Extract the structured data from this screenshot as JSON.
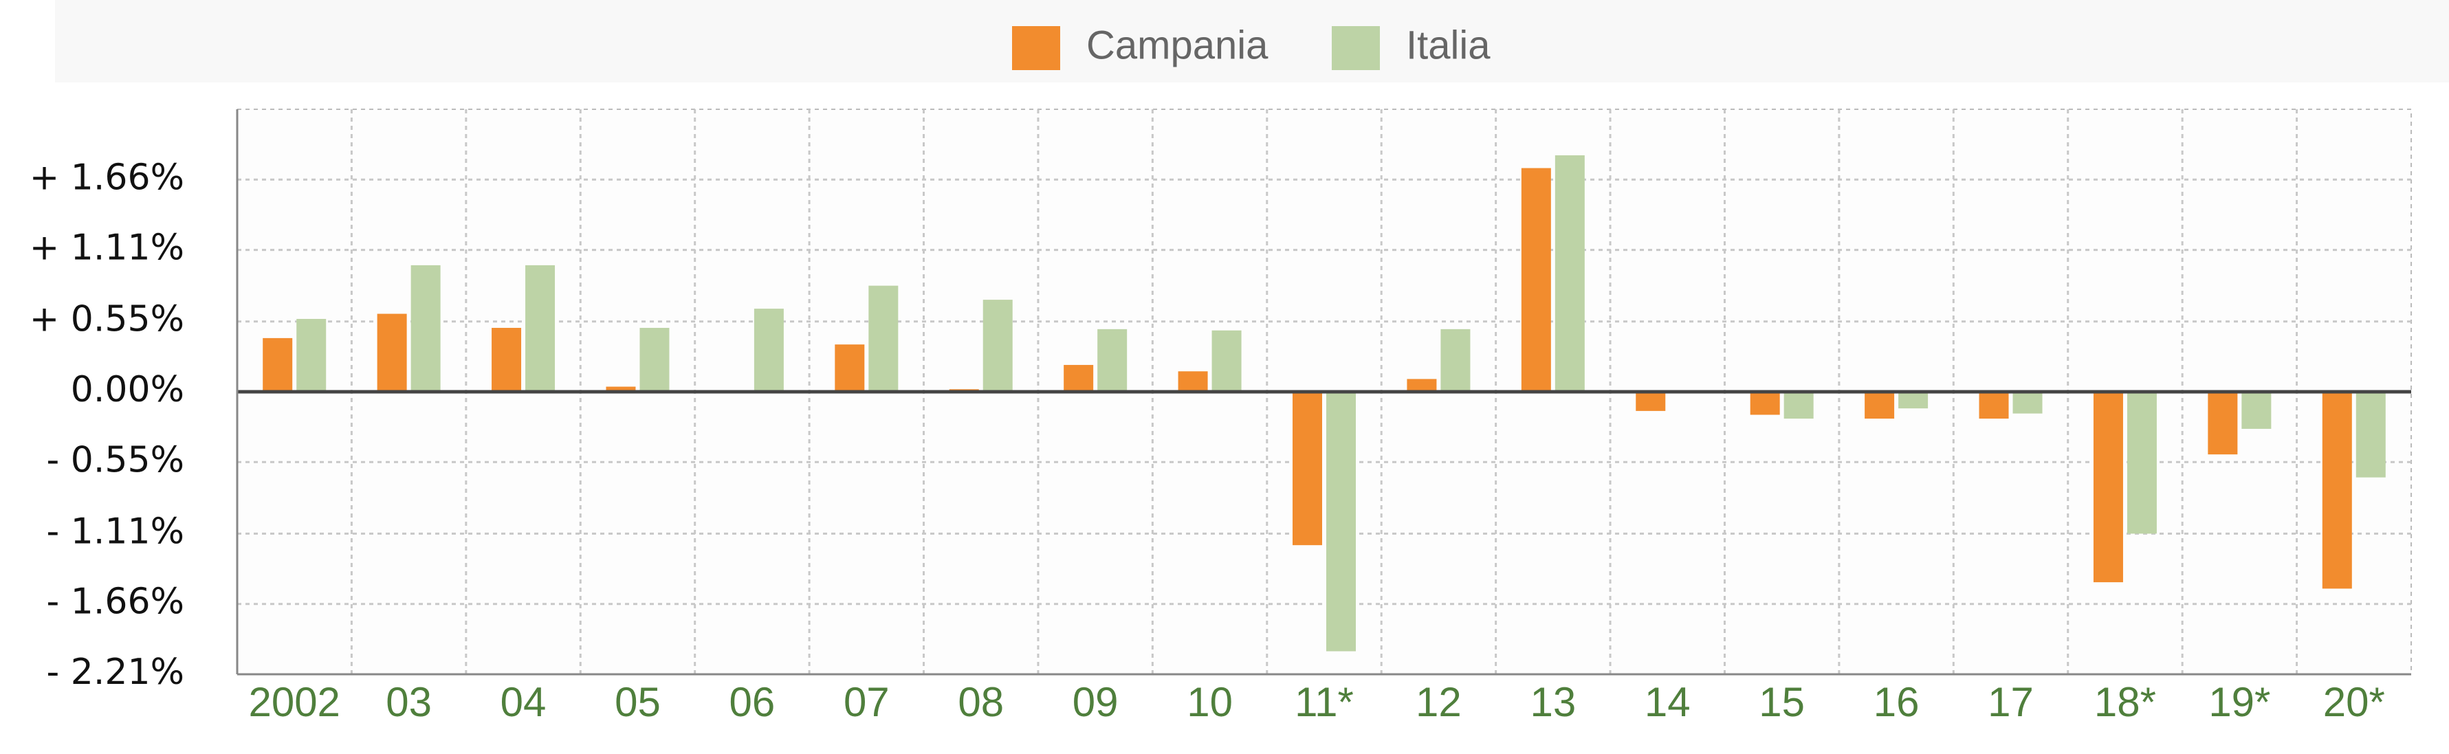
{
  "chart_data": {
    "type": "bar",
    "categories": [
      "2002",
      "03",
      "04",
      "05",
      "06",
      "07",
      "08",
      "09",
      "10",
      "11*",
      "12",
      "13",
      "14",
      "15",
      "16",
      "17",
      "18*",
      "19*",
      "20*"
    ],
    "series": [
      {
        "name": "Campania",
        "color": "#f28c2e",
        "values": [
          0.42,
          0.61,
          0.5,
          0.04,
          0,
          0.37,
          0.02,
          0.21,
          0.16,
          -1.2,
          0.1,
          1.75,
          -0.15,
          -0.18,
          -0.21,
          -0.21,
          -1.49,
          -0.49,
          -1.54
        ]
      },
      {
        "name": "Italia",
        "color": "#bdd3a6",
        "values": [
          0.57,
          0.99,
          0.99,
          0.5,
          0.65,
          0.83,
          0.72,
          0.49,
          0.48,
          -2.03,
          0.49,
          1.85,
          -0.01,
          -0.21,
          -0.13,
          -0.17,
          -1.11,
          -0.29,
          -0.67
        ]
      }
    ],
    "ylim": [
      -2.21,
      2.21
    ],
    "yticks": [
      {
        "value": 1.66,
        "label": "+ 1.66%"
      },
      {
        "value": 1.11,
        "label": "+ 1.11%"
      },
      {
        "value": 0.55,
        "label": "+ 0.55%"
      },
      {
        "value": 0,
        "label": "0.00%"
      },
      {
        "value": -0.55,
        "label": "- 0.55%"
      },
      {
        "value": -1.11,
        "label": "- 1.11%"
      },
      {
        "value": -1.66,
        "label": "- 1.66%"
      },
      {
        "value": -2.21,
        "label": "- 2.21%"
      }
    ],
    "grid": true,
    "legend": "top"
  }
}
